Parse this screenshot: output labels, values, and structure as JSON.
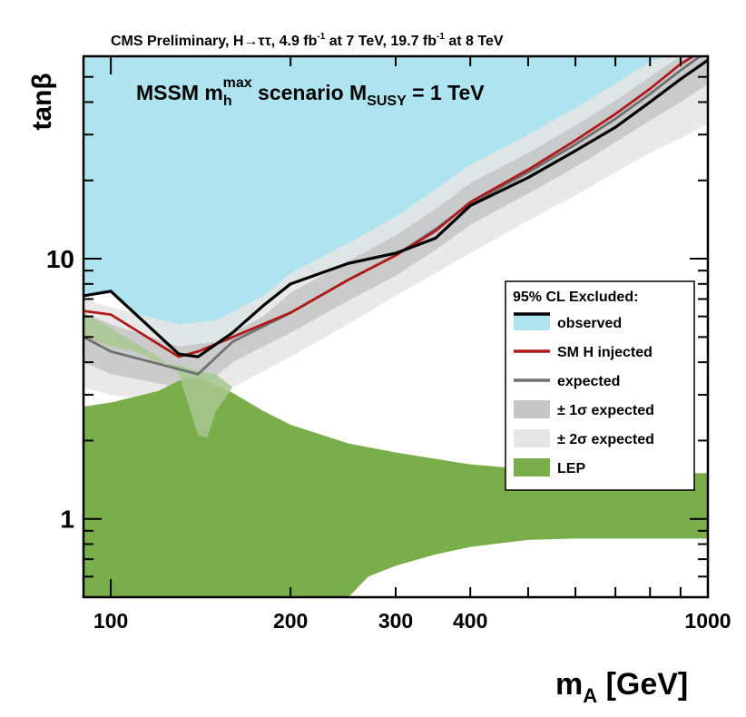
{
  "chart_data": {
    "type": "line",
    "header": {
      "prefix": "CMS Preliminary,  H",
      "arrow": "→",
      "tautau": "ττ,  4.9 fb",
      "exp1": "-1",
      "mid": " at 7 TeV, 19.7 fb",
      "exp2": "-1",
      "suffix": " at 8 TeV"
    },
    "scenario": {
      "mssm": "MSSM m",
      "h_sub": "h",
      "max_sup": "max",
      "word": " scenario  M",
      "susy_sub": "SUSY",
      "tail": " = 1 TeV"
    },
    "xlabel": {
      "main": "m",
      "sub": "A",
      "rest": " [GeV]"
    },
    "ylabel": "tanβ",
    "x_scale": "log",
    "y_scale": "log",
    "xlim": [
      90,
      1000
    ],
    "ylim": [
      0.5,
      60
    ],
    "x_tick_labels": [
      {
        "value": 100,
        "label": "100"
      },
      {
        "value": 200,
        "label": "200"
      },
      {
        "value": 300,
        "label": "300"
      },
      {
        "value": 400,
        "label": "400"
      },
      {
        "value": 1000,
        "label": "1000"
      }
    ],
    "y_tick_labels": [
      {
        "value": 1,
        "label": "1"
      },
      {
        "value": 10,
        "label": "10"
      }
    ],
    "legend": {
      "title": "95% CL Excluded:",
      "placement": "right",
      "entries": [
        {
          "key": "excluded",
          "label": "observed",
          "color": "#aee4f0",
          "style": "fill-line"
        },
        {
          "key": "injected",
          "label": "SM H injected",
          "color": "#b01a1a",
          "style": "line"
        },
        {
          "key": "expected",
          "label": "expected",
          "color": "#707070",
          "style": "line"
        },
        {
          "key": "sigma1",
          "label": "± 1σ expected",
          "color": "#c6c6c6",
          "style": "fill"
        },
        {
          "key": "sigma2",
          "label": "± 2σ expected",
          "color": "#e5e5e5",
          "style": "fill"
        },
        {
          "key": "lep",
          "label": "LEP",
          "color": "#7aae4b",
          "style": "fill"
        }
      ]
    },
    "series": [
      {
        "name": "observed",
        "color": "#000000",
        "x": [
          90,
          100,
          130,
          140,
          160,
          180,
          200,
          250,
          300,
          350,
          400,
          500,
          600,
          700,
          800,
          900,
          1000
        ],
        "y": [
          7.2,
          7.5,
          4.3,
          4.2,
          5.2,
          6.6,
          8.0,
          9.6,
          10.5,
          12.0,
          16.0,
          20.5,
          26.0,
          32.0,
          40.0,
          49.0,
          58.0
        ]
      },
      {
        "name": "SM H injected",
        "color": "#b01a1a",
        "x": [
          90,
          100,
          130,
          140,
          160,
          200,
          250,
          300,
          350,
          400,
          500,
          600,
          700,
          800,
          900,
          1000
        ],
        "y": [
          6.3,
          6.1,
          4.2,
          4.4,
          5.0,
          6.2,
          8.3,
          10.3,
          12.8,
          16.5,
          22.0,
          28.5,
          36.0,
          45.0,
          56.0,
          65.0
        ]
      },
      {
        "name": "expected",
        "color": "#707070",
        "x": [
          90,
          100,
          140,
          160,
          200,
          250,
          300,
          350,
          400,
          500,
          600,
          700,
          800,
          900,
          1000
        ],
        "y": [
          5.0,
          4.4,
          3.6,
          4.8,
          6.2,
          8.3,
          10.3,
          13.0,
          16.3,
          21.5,
          27.5,
          34.5,
          43.0,
          53.0,
          63.0
        ]
      }
    ],
    "bands": [
      {
        "name": "observed excluded",
        "color": "#aee4f0",
        "lower_x": [
          90,
          100,
          130,
          140,
          160,
          180,
          200,
          250,
          300,
          350,
          400,
          500,
          600,
          700,
          800,
          900,
          1000
        ],
        "lower_y": [
          7.2,
          7.5,
          4.3,
          4.2,
          5.2,
          6.6,
          8.0,
          9.6,
          10.5,
          12.0,
          16.0,
          20.5,
          26.0,
          32.0,
          40.0,
          49.0,
          58.0
        ]
      },
      {
        "name": "± 2σ expected",
        "color": "#e5e5e5",
        "upper_x": [
          90,
          100,
          130,
          150,
          180,
          200,
          250,
          300,
          350,
          400,
          500,
          600,
          700,
          800,
          900,
          1000
        ],
        "upper_y": [
          7.0,
          6.5,
          5.6,
          5.8,
          7.2,
          8.8,
          11.5,
          14.5,
          18.5,
          23.0,
          30.0,
          38.0,
          47.0,
          57.0,
          64.0,
          70.0
        ],
        "lower_x": [
          90,
          100,
          140,
          160,
          200,
          250,
          300,
          350,
          400,
          500,
          600,
          700,
          800,
          900,
          1000
        ],
        "lower_y": [
          3.2,
          3.0,
          2.7,
          3.2,
          4.2,
          5.6,
          7.2,
          8.8,
          10.5,
          14.0,
          17.5,
          21.5,
          25.5,
          29.0,
          33.0
        ]
      },
      {
        "name": "± 1σ expected",
        "color": "#c6c6c6",
        "upper_x": [
          90,
          100,
          130,
          150,
          180,
          200,
          250,
          300,
          350,
          400,
          500,
          600,
          700,
          800,
          900,
          1000
        ],
        "upper_y": [
          6.2,
          5.6,
          4.6,
          4.8,
          6.0,
          7.4,
          9.8,
          12.3,
          15.5,
          19.5,
          25.5,
          32.5,
          40.5,
          50.0,
          60.0,
          68.0
        ],
        "lower_x": [
          90,
          100,
          140,
          160,
          200,
          250,
          300,
          350,
          400,
          500,
          600,
          700,
          800,
          900,
          1000
        ],
        "lower_y": [
          4.0,
          3.6,
          3.1,
          4.0,
          5.2,
          6.9,
          8.6,
          10.8,
          13.5,
          17.8,
          22.5,
          28.0,
          34.0,
          40.0,
          47.0
        ]
      },
      {
        "name": "LEP",
        "color": "#7aae4b",
        "upper_x": [
          90,
          100,
          120,
          130,
          140,
          160,
          180,
          200,
          250,
          300,
          350,
          400,
          500,
          600,
          700,
          1000
        ],
        "upper_y": [
          2.7,
          2.8,
          3.1,
          3.4,
          3.5,
          3.05,
          2.6,
          2.3,
          1.95,
          1.8,
          1.7,
          1.62,
          1.55,
          1.5,
          1.5,
          1.5
        ],
        "lower_x": [
          90,
          250,
          270,
          300,
          350,
          400,
          500,
          600,
          1000
        ],
        "lower_y": [
          0.5,
          0.5,
          0.6,
          0.66,
          0.73,
          0.78,
          0.83,
          0.84,
          0.84
        ]
      },
      {
        "name": "LEP light overlay",
        "color": "#a8c890",
        "x": [
          90,
          100,
          120,
          130,
          140,
          145,
          150,
          160,
          150,
          140,
          130,
          120,
          110,
          100,
          90
        ],
        "y": [
          6.2,
          5.4,
          4.2,
          3.6,
          2.1,
          2.05,
          2.6,
          3.2,
          3.6,
          3.7,
          3.9,
          4.0,
          4.4,
          4.6,
          5.0
        ]
      }
    ]
  }
}
